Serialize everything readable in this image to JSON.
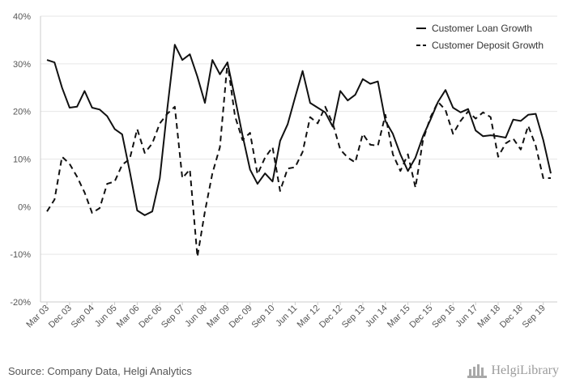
{
  "chart_data": {
    "type": "line",
    "title": "",
    "xlabel": "",
    "ylabel": "",
    "ylim": [
      -20,
      40
    ],
    "y_ticks": [
      -20,
      -10,
      0,
      10,
      20,
      30,
      40
    ],
    "y_tick_labels": [
      "-20%",
      "-10%",
      "0%",
      "10%",
      "20%",
      "30%",
      "40%"
    ],
    "grid": true,
    "legend_position": "top-right",
    "x_tick_labels": [
      "Mar 03",
      "Dec 03",
      "Sep 04",
      "Jun 05",
      "Mar 06",
      "Dec 06",
      "Sep 07",
      "Jun 08",
      "Mar 09",
      "Dec 09",
      "Sep 10",
      "Jun 11",
      "Mar 12",
      "Dec 12",
      "Sep 13",
      "Jun 14",
      "Mar 15",
      "Dec 15",
      "Sep 16",
      "Jun 17",
      "Mar 18",
      "Dec 18",
      "Sep 19"
    ],
    "x_start": "Mar 03",
    "x_frequency": "quarterly",
    "series": [
      {
        "name": "Customer Loan Growth",
        "style": "solid",
        "values": [
          30.8,
          30.3,
          25.0,
          20.8,
          21.0,
          24.3,
          20.8,
          20.4,
          19.0,
          16.3,
          15.2,
          7.5,
          -0.8,
          -1.8,
          -1.0,
          6.0,
          20.5,
          34.0,
          30.8,
          32.0,
          27.3,
          21.8,
          30.8,
          27.8,
          30.3,
          22.8,
          15.0,
          7.8,
          4.8,
          7.0,
          5.3,
          13.8,
          17.3,
          23.0,
          28.5,
          21.8,
          20.8,
          19.8,
          16.8,
          24.3,
          22.3,
          23.5,
          26.8,
          25.8,
          26.3,
          18.0,
          15.3,
          11.0,
          7.5,
          10.3,
          14.8,
          18.3,
          22.0,
          24.5,
          20.8,
          19.8,
          20.5,
          16.0,
          14.8,
          15.0,
          14.8,
          14.5,
          18.3,
          18.0,
          19.3,
          19.5,
          14.0,
          7.0
        ]
      },
      {
        "name": "Customer Deposit Growth",
        "style": "dashed",
        "values": [
          -1.0,
          1.5,
          10.5,
          9.0,
          6.3,
          3.0,
          -1.3,
          -0.3,
          4.8,
          5.3,
          8.8,
          10.0,
          16.3,
          11.3,
          13.3,
          17.5,
          19.5,
          21.0,
          6.0,
          7.8,
          -10.5,
          -1.0,
          7.0,
          12.5,
          30.3,
          19.0,
          14.0,
          15.5,
          6.8,
          10.3,
          12.5,
          3.3,
          8.0,
          8.3,
          11.5,
          18.8,
          17.5,
          21.0,
          17.5,
          12.0,
          10.3,
          9.3,
          15.3,
          13.0,
          12.8,
          19.3,
          11.0,
          7.5,
          11.0,
          4.0,
          14.0,
          18.8,
          22.0,
          20.3,
          15.3,
          18.0,
          20.0,
          18.5,
          19.8,
          18.8,
          10.5,
          13.3,
          14.3,
          12.0,
          17.0,
          12.8,
          6.0,
          6.0
        ]
      }
    ]
  },
  "footer": {
    "source_text": "Source: Company Data, Helgi Analytics",
    "logo_text": "HelgiLibrary"
  },
  "colors": {
    "line": "#111111",
    "grid": "#e6e6e6",
    "axis": "#cccccc",
    "text": "#555555"
  }
}
